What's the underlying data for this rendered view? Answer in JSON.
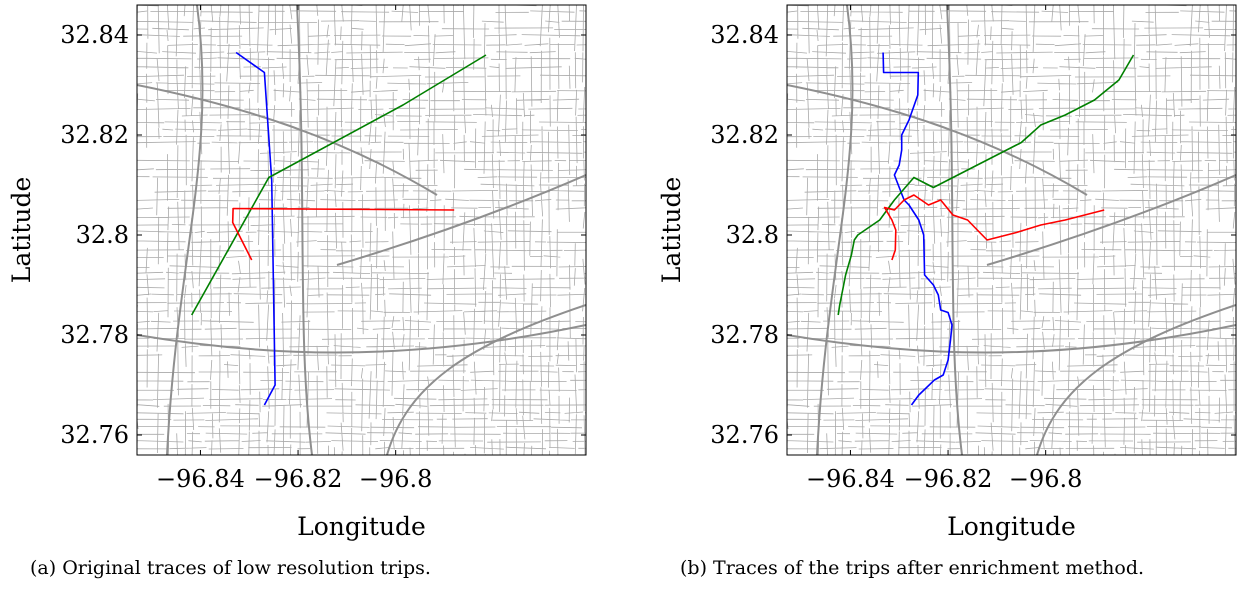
{
  "chart_data": [
    {
      "panel": "a",
      "type": "line",
      "caption": "(a) Original traces of low resolution trips.",
      "xlabel": "Longitude",
      "ylabel": "Latitude",
      "xlim": [
        -96.853,
        -96.761
      ],
      "ylim": [
        32.756,
        32.846
      ],
      "xticks": [
        -96.84,
        -96.82,
        -96.8
      ],
      "xtick_labels": [
        "−96.84",
        "−96.82",
        "−96.8"
      ],
      "yticks": [
        32.76,
        32.78,
        32.8,
        32.82,
        32.84
      ],
      "ytick_labels": [
        "32.76",
        "32.78",
        "32.8",
        "32.82",
        "32.84"
      ],
      "grid": false,
      "background": "street network (gray)",
      "series": [
        {
          "color": "#0000ff",
          "x": [
            -96.8327,
            -96.8269,
            -96.8254,
            -96.8247,
            -96.8269
          ],
          "y": [
            32.8365,
            32.8325,
            32.811,
            32.77,
            32.766
          ]
        },
        {
          "color": "#008000",
          "x": [
            -96.8418,
            -96.826,
            -96.7985,
            -96.7815
          ],
          "y": [
            32.784,
            32.8115,
            32.826,
            32.836
          ]
        },
        {
          "color": "#ff0000",
          "x": [
            -96.8295,
            -96.8334,
            -96.8333,
            -96.788
          ],
          "y": [
            32.795,
            32.8025,
            32.8053,
            32.805
          ]
        }
      ]
    },
    {
      "panel": "b",
      "type": "line",
      "caption": "(b) Traces of the trips after enrichment method.",
      "xlabel": "Longitude",
      "ylabel": "Latitude",
      "xlim": [
        -96.853,
        -96.761
      ],
      "ylim": [
        32.756,
        32.846
      ],
      "xticks": [
        -96.84,
        -96.82,
        -96.8
      ],
      "xtick_labels": [
        "−96.84",
        "−96.82",
        "−96.8"
      ],
      "yticks": [
        32.76,
        32.78,
        32.8,
        32.82,
        32.84
      ],
      "ytick_labels": [
        "32.76",
        "32.78",
        "32.8",
        "32.82",
        "32.84"
      ],
      "grid": false,
      "background": "street network (gray)",
      "series": [
        {
          "color": "#0000ff",
          "x": [
            -96.8333,
            -96.8332,
            -96.8261,
            -96.8262,
            -96.828,
            -96.8295,
            -96.8295,
            -96.83,
            -96.831,
            -96.829,
            -96.828,
            -96.826,
            -96.825,
            -96.8248,
            -96.823,
            -96.822,
            -96.8215,
            -96.82,
            -96.8192,
            -96.8195,
            -96.82,
            -96.821,
            -96.8228,
            -96.826,
            -96.8275
          ],
          "y": [
            32.8365,
            32.8325,
            32.8325,
            32.828,
            32.823,
            32.82,
            32.817,
            32.814,
            32.812,
            32.807,
            32.806,
            32.803,
            32.8,
            32.792,
            32.79,
            32.788,
            32.785,
            32.7845,
            32.782,
            32.779,
            32.775,
            32.772,
            32.771,
            32.768,
            32.766
          ]
        },
        {
          "color": "#008000",
          "x": [
            -96.8425,
            -96.8422,
            -96.8418,
            -96.841,
            -96.8398,
            -96.8392,
            -96.8385,
            -96.834,
            -96.831,
            -96.827,
            -96.823,
            -96.818,
            -96.812,
            -96.805,
            -96.801,
            -96.796,
            -96.79,
            -96.785,
            -96.782
          ],
          "y": [
            32.784,
            32.786,
            32.788,
            32.792,
            32.796,
            32.799,
            32.8,
            32.803,
            32.807,
            32.8115,
            32.8095,
            32.812,
            32.815,
            32.8185,
            32.822,
            32.824,
            32.827,
            32.831,
            32.836
          ]
        },
        {
          "color": "#ff0000",
          "x": [
            -96.8315,
            -96.8308,
            -96.8307,
            -96.8315,
            -96.833,
            -96.831,
            -96.829,
            -96.827,
            -96.824,
            -96.8215,
            -96.819,
            -96.816,
            -96.814,
            -96.812,
            -96.81,
            -96.806,
            -96.801,
            -96.796,
            -96.788
          ],
          "y": [
            32.795,
            32.797,
            32.801,
            32.803,
            32.8055,
            32.805,
            32.807,
            32.808,
            32.806,
            32.807,
            32.804,
            32.803,
            32.801,
            32.799,
            32.7995,
            32.8005,
            32.802,
            32.803,
            32.805
          ]
        }
      ]
    }
  ]
}
